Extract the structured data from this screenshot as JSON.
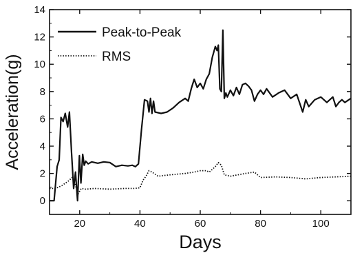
{
  "chart_data": {
    "type": "line",
    "xlabel": "Days",
    "ylabel": "Acceleration(g)",
    "xlim": [
      10,
      110
    ],
    "ylim": [
      -1,
      14
    ],
    "x_ticks": [
      20,
      40,
      60,
      80,
      100
    ],
    "y_ticks": [
      0,
      2,
      4,
      6,
      8,
      10,
      12,
      14
    ],
    "grid": false,
    "legend_position": "top-left",
    "series": [
      {
        "name": "Peak-to-Peak",
        "style": "solid",
        "color": "#111111",
        "x": [
          10,
          11.5,
          12.5,
          13.2,
          13.8,
          14.5,
          15.2,
          16,
          16.6,
          17.3,
          18,
          18.6,
          19.3,
          19.9,
          20.4,
          21,
          21.5,
          22,
          22.8,
          24,
          26,
          28,
          30,
          32,
          34,
          36,
          37.5,
          38.5,
          39.5,
          40.5,
          41.5,
          42.5,
          43,
          43.5,
          44,
          44.5,
          45,
          47,
          49,
          51,
          53,
          55,
          56,
          57,
          58,
          59,
          60,
          61,
          62,
          63,
          64,
          65,
          65.6,
          66,
          66.5,
          67,
          67.5,
          68,
          68.5,
          69,
          70,
          71,
          72,
          73,
          74,
          75,
          76,
          77,
          78,
          79,
          80,
          81,
          82,
          84,
          86,
          88,
          90,
          92,
          94,
          95,
          96,
          98,
          100,
          102,
          104,
          105,
          106,
          107,
          108,
          110
        ],
        "y": [
          0,
          0,
          2.5,
          3,
          6.1,
          5.8,
          6.4,
          5.4,
          6.5,
          3.5,
          0.9,
          2.1,
          0,
          3.3,
          1.3,
          3.4,
          2.6,
          2.9,
          2.7,
          2.85,
          2.75,
          2.85,
          2.8,
          2.5,
          2.6,
          2.55,
          2.6,
          2.5,
          2.7,
          5.2,
          7.4,
          7.3,
          6.5,
          7.5,
          6.4,
          7.3,
          6.5,
          6.4,
          6.5,
          6.8,
          7.2,
          7.5,
          7.3,
          8.2,
          8.9,
          8.3,
          8.6,
          8.2,
          8.9,
          9.3,
          10.5,
          11.3,
          11,
          11.4,
          8.2,
          8,
          12.5,
          7.5,
          7.9,
          7.6,
          8.1,
          7.7,
          8.3,
          7.8,
          8.5,
          8.6,
          8.4,
          8.1,
          7.3,
          7.8,
          8.1,
          7.8,
          8.2,
          7.6,
          7.9,
          8.1,
          7.5,
          7.8,
          6.5,
          7.4,
          6.9,
          7.4,
          7.6,
          7.2,
          7.6,
          6.9,
          7.2,
          7.4,
          7.2,
          7.5
        ]
      },
      {
        "name": "RMS",
        "style": "dotted",
        "color": "#111111",
        "x": [
          10,
          12,
          14,
          16,
          17.5,
          18.5,
          19.5,
          20.5,
          22,
          25,
          30,
          35,
          38,
          40,
          41,
          42,
          43,
          44,
          46,
          50,
          55,
          58,
          60,
          62,
          63,
          64,
          65,
          66,
          67,
          68,
          70,
          75,
          78,
          80,
          85,
          90,
          95,
          100,
          105,
          110
        ],
        "y": [
          0.9,
          0.9,
          1.1,
          1.4,
          1.7,
          1.2,
          0.5,
          0.9,
          0.85,
          0.9,
          0.85,
          0.9,
          0.9,
          0.95,
          1.5,
          1.8,
          2.2,
          2.1,
          1.8,
          1.9,
          2.0,
          2.1,
          2.2,
          2.2,
          2.1,
          2.3,
          2.5,
          2.8,
          2.6,
          1.9,
          1.8,
          2.0,
          2.1,
          1.7,
          1.75,
          1.7,
          1.6,
          1.7,
          1.75,
          1.8
        ]
      }
    ]
  }
}
